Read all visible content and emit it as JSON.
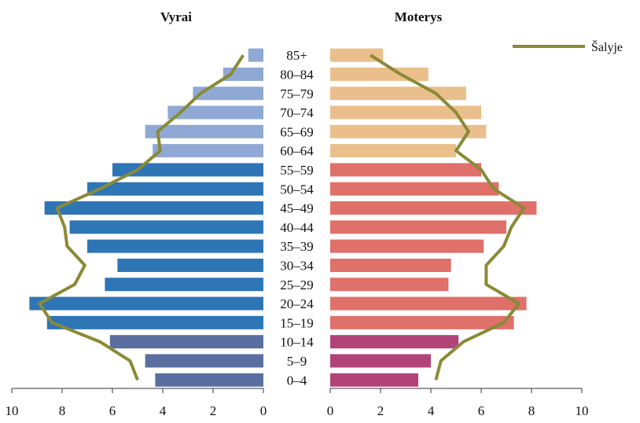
{
  "chart_data": {
    "type": "bar",
    "subtype": "population-pyramid",
    "categories": [
      "0–4",
      "5–9",
      "10–14",
      "15–19",
      "20–24",
      "25–29",
      "30–34",
      "35–39",
      "40–44",
      "45–49",
      "50–54",
      "55–59",
      "60–64",
      "65–69",
      "70–74",
      "75–79",
      "80–84",
      "85+"
    ],
    "panels": [
      {
        "title": "Vyrai",
        "side": "left",
        "xlim": [
          0,
          10
        ],
        "ticks": [
          "10",
          "8",
          "6",
          "4",
          "2",
          "0"
        ],
        "values": [
          4.3,
          4.7,
          6.1,
          8.6,
          9.3,
          6.3,
          5.8,
          7.0,
          7.7,
          8.7,
          7.0,
          6.0,
          4.4,
          4.7,
          3.8,
          2.8,
          1.6,
          0.6
        ],
        "colors": [
          "#5a6fa0",
          "#5a6fa0",
          "#5a6fa0",
          "#2e75b6",
          "#2e75b6",
          "#2e75b6",
          "#2e75b6",
          "#2e75b6",
          "#2e75b6",
          "#2e75b6",
          "#2e75b6",
          "#2e75b6",
          "#8fa9d4",
          "#8fa9d4",
          "#8fa9d4",
          "#8fa9d4",
          "#8fa9d4",
          "#8fa9d4"
        ],
        "country": [
          5.0,
          5.3,
          6.5,
          8.4,
          8.9,
          7.5,
          7.1,
          7.8,
          7.9,
          8.2,
          6.5,
          5.0,
          4.1,
          4.2,
          3.3,
          2.5,
          1.3,
          0.8
        ]
      },
      {
        "title": "Moterys",
        "side": "right",
        "xlim": [
          0,
          10
        ],
        "ticks": [
          "0",
          "2",
          "4",
          "6",
          "8",
          "10"
        ],
        "values": [
          3.5,
          4.0,
          5.1,
          7.3,
          7.8,
          4.7,
          4.8,
          6.1,
          7.0,
          8.2,
          6.7,
          6.0,
          5.0,
          6.2,
          6.0,
          5.4,
          3.9,
          2.1
        ],
        "colors": [
          "#b24378",
          "#b24378",
          "#b24378",
          "#e0706a",
          "#e0706a",
          "#e0706a",
          "#e0706a",
          "#e0706a",
          "#e0706a",
          "#e0706a",
          "#e0706a",
          "#e0706a",
          "#eabf8c",
          "#eabf8c",
          "#eabf8c",
          "#eabf8c",
          "#eabf8c",
          "#eabf8c"
        ],
        "country": [
          4.2,
          4.4,
          5.3,
          6.9,
          7.5,
          6.2,
          6.2,
          6.9,
          7.2,
          7.7,
          6.5,
          6.0,
          5.0,
          5.5,
          5.0,
          4.2,
          2.8,
          1.6
        ]
      }
    ],
    "legend": {
      "label": "Šalyje",
      "color": "#8a8a37",
      "placement": "top-right"
    }
  }
}
